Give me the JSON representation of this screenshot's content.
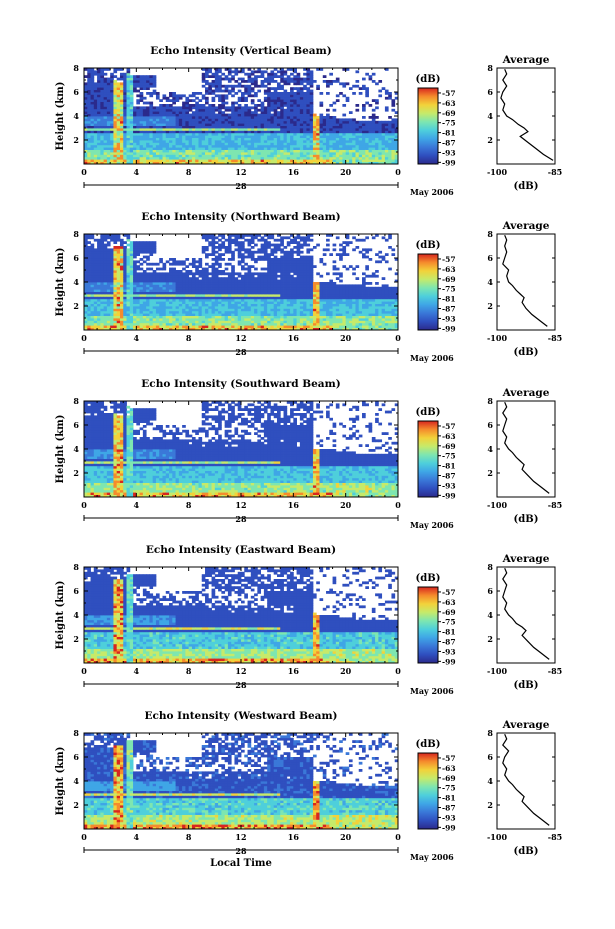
{
  "chart_data": [
    {
      "type": "heatmap",
      "title": "Echo Intensity (Vertical Beam)",
      "ylabel": "Height (km)",
      "xtick_labels": [
        "0",
        "4",
        "8",
        "12",
        "16",
        "20",
        "0"
      ],
      "ytick_labels": [
        "2",
        "4",
        "6",
        "8"
      ],
      "date_label": "28",
      "month_label": "May 2006",
      "xlim": [
        0,
        24
      ],
      "ylim": [
        0,
        8
      ],
      "colorbar": {
        "unit": "(dB)",
        "labels": [
          "-57",
          "-63",
          "-69",
          "-75",
          "-81",
          "-87",
          "-93",
          "-99"
        ],
        "range": [
          -100,
          -54
        ]
      },
      "profile": {
        "title": "Average",
        "xlabel": "(dB)",
        "xtick_labels": [
          "-100",
          "-85"
        ],
        "xlim": [
          -100,
          -85
        ],
        "ytick_labels": [
          "2",
          "4",
          "6",
          "8"
        ],
        "ylim": [
          0,
          8
        ],
        "heights": [
          0.3,
          0.8,
          1.3,
          1.8,
          2.3,
          2.7,
          3.0,
          3.3,
          3.7,
          4.0,
          4.5,
          5.0,
          5.5,
          6.0,
          6.5,
          7.0,
          7.5,
          7.9
        ],
        "values": [
          -85.5,
          -88,
          -90,
          -92,
          -94,
          -92,
          -93,
          -94.5,
          -96,
          -97.5,
          -98.5,
          -98,
          -99,
          -98.5,
          -97.5,
          -98.5,
          -97.5,
          -98
        ]
      }
    },
    {
      "type": "heatmap",
      "title": "Echo Intensity (Northward Beam)",
      "ylabel": "Height (km)",
      "xtick_labels": [
        "0",
        "4",
        "8",
        "12",
        "16",
        "20",
        "0"
      ],
      "ytick_labels": [
        "2",
        "4",
        "6",
        "8"
      ],
      "date_label": "28",
      "month_label": "May 2006",
      "xlim": [
        0,
        24
      ],
      "ylim": [
        0,
        8
      ],
      "colorbar": {
        "unit": "(dB)",
        "labels": [
          "-57",
          "-63",
          "-69",
          "-75",
          "-81",
          "-87",
          "-93",
          "-99"
        ],
        "range": [
          -100,
          -54
        ]
      },
      "profile": {
        "title": "Average",
        "xlabel": "(dB)",
        "xtick_labels": [
          "-100",
          "-85"
        ],
        "xlim": [
          -100,
          -85
        ],
        "ytick_labels": [
          "2",
          "4",
          "6",
          "8"
        ],
        "ylim": [
          0,
          8
        ],
        "heights": [
          0.3,
          0.8,
          1.3,
          1.8,
          2.3,
          2.7,
          3.0,
          3.3,
          3.7,
          4.0,
          4.5,
          5.0,
          5.5,
          6.0,
          6.5,
          7.0,
          7.5,
          7.9
        ],
        "values": [
          -87,
          -89,
          -91,
          -92.5,
          -93.5,
          -93,
          -94,
          -95,
          -96,
          -97,
          -97.5,
          -97,
          -98.5,
          -98,
          -97.5,
          -98,
          -97.5,
          -98
        ]
      }
    },
    {
      "type": "heatmap",
      "title": "Echo Intensity (Southward Beam)",
      "ylabel": "Height (km)",
      "xtick_labels": [
        "0",
        "4",
        "8",
        "12",
        "16",
        "20",
        "0"
      ],
      "ytick_labels": [
        "2",
        "4",
        "6",
        "8"
      ],
      "date_label": "28",
      "month_label": "May 2006",
      "xlim": [
        0,
        24
      ],
      "ylim": [
        0,
        8
      ],
      "colorbar": {
        "unit": "(dB)",
        "labels": [
          "-57",
          "-63",
          "-69",
          "-75",
          "-81",
          "-87",
          "-93",
          "-99"
        ],
        "range": [
          -100,
          -54
        ]
      },
      "profile": {
        "title": "Average",
        "xlabel": "(dB)",
        "xtick_labels": [
          "-100",
          "-85"
        ],
        "xlim": [
          -100,
          -85
        ],
        "ytick_labels": [
          "2",
          "4",
          "6",
          "8"
        ],
        "ylim": [
          0,
          8
        ],
        "heights": [
          0.3,
          0.8,
          1.3,
          1.8,
          2.3,
          2.7,
          3.0,
          3.3,
          3.7,
          4.0,
          4.5,
          5.0,
          5.5,
          6.0,
          6.5,
          7.0,
          7.5,
          7.9
        ],
        "values": [
          -86.5,
          -88.5,
          -90.5,
          -92,
          -93.5,
          -93,
          -94,
          -95,
          -96,
          -97,
          -98,
          -97.5,
          -98.5,
          -98,
          -97.5,
          -98.5,
          -97.5,
          -98
        ]
      }
    },
    {
      "type": "heatmap",
      "title": "Echo Intensity (Eastward Beam)",
      "ylabel": "Height (km)",
      "xtick_labels": [
        "0",
        "4",
        "8",
        "12",
        "16",
        "20",
        "0"
      ],
      "ytick_labels": [
        "2",
        "4",
        "6",
        "8"
      ],
      "date_label": "28",
      "month_label": "May 2006",
      "xlim": [
        0,
        24
      ],
      "ylim": [
        0,
        8
      ],
      "colorbar": {
        "unit": "(dB)",
        "labels": [
          "-57",
          "-63",
          "-69",
          "-75",
          "-81",
          "-87",
          "-93",
          "-99"
        ],
        "range": [
          -100,
          -54
        ]
      },
      "profile": {
        "title": "Average",
        "xlabel": "(dB)",
        "xtick_labels": [
          "-100",
          "-85"
        ],
        "xlim": [
          -100,
          -85
        ],
        "ytick_labels": [
          "2",
          "4",
          "6",
          "8"
        ],
        "ylim": [
          0,
          8
        ],
        "heights": [
          0.3,
          0.8,
          1.3,
          1.8,
          2.3,
          2.7,
          3.0,
          3.3,
          3.7,
          4.0,
          4.5,
          5.0,
          5.5,
          6.0,
          6.5,
          7.0,
          7.5,
          7.9
        ],
        "values": [
          -86.5,
          -88.5,
          -90.5,
          -92,
          -93.5,
          -92.5,
          -93.5,
          -95,
          -96,
          -97,
          -98,
          -97.5,
          -98.5,
          -98,
          -97.5,
          -98.5,
          -97.5,
          -98
        ]
      }
    },
    {
      "type": "heatmap",
      "title": "Echo Intensity (Westward Beam)",
      "ylabel": "Height (km)",
      "xlabel": "Local Time",
      "xtick_labels": [
        "0",
        "4",
        "8",
        "12",
        "16",
        "20",
        "0"
      ],
      "ytick_labels": [
        "2",
        "4",
        "6",
        "8"
      ],
      "date_label": "28",
      "month_label": "May 2006",
      "xlim": [
        0,
        24
      ],
      "ylim": [
        0,
        8
      ],
      "colorbar": {
        "unit": "(dB)",
        "labels": [
          "-57",
          "-63",
          "-69",
          "-75",
          "-81",
          "-87",
          "-93",
          "-99"
        ],
        "range": [
          -100,
          -54
        ]
      },
      "profile": {
        "title": "Average",
        "xlabel": "(dB)",
        "xtick_labels": [
          "-100",
          "-85"
        ],
        "xlim": [
          -100,
          -85
        ],
        "ytick_labels": [
          "2",
          "4",
          "6",
          "8"
        ],
        "ylim": [
          0,
          8
        ],
        "heights": [
          0.3,
          0.8,
          1.3,
          1.8,
          2.3,
          2.7,
          3.0,
          3.3,
          3.7,
          4.0,
          4.5,
          5.0,
          5.5,
          6.0,
          6.5,
          7.0,
          7.5,
          7.9
        ],
        "values": [
          -86.5,
          -88.5,
          -90.5,
          -92,
          -93.5,
          -93,
          -94,
          -95,
          -96,
          -97,
          -98,
          -97.5,
          -98.5,
          -98,
          -97,
          -98.5,
          -97.5,
          -98
        ]
      }
    }
  ],
  "colormap": [
    "#2b2a8c",
    "#2f4fbf",
    "#3a78d8",
    "#3fa6e6",
    "#4ecfdb",
    "#7ee6b0",
    "#c6ea6a",
    "#f2d23a",
    "#f58b2c",
    "#d8261f"
  ]
}
